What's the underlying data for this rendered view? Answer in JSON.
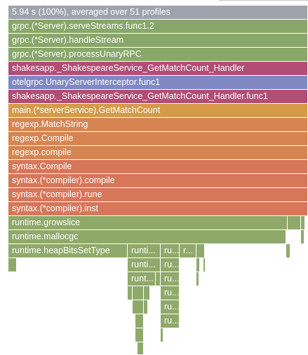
{
  "flamegraph": {
    "root": {
      "label": "5.94 s (100%), averaged over 51 profiles"
    },
    "stack": [
      {
        "label": "grpc.(*Server).serveStreams.func1.2"
      },
      {
        "label": "grpc.(*Server).handleStream"
      },
      {
        "label": "grpc.(*Server).processUnaryRPC"
      },
      {
        "label": "shakesapp._ShakespeareService_GetMatchCount_Handler"
      },
      {
        "label": "otelgrpc.UnaryServerInterceptor.func1"
      },
      {
        "label": "shakesapp._ShakespeareService_GetMatchCount_Handler.func1"
      },
      {
        "label": "main.(*serverService).GetMatchCount"
      },
      {
        "label": "regexp.MatchString"
      },
      {
        "label": "regexp.Compile"
      },
      {
        "label": "regexp.compile"
      },
      {
        "label": "syntax.Compile"
      },
      {
        "label": "syntax.(*compiler).compile"
      },
      {
        "label": "syntax.(*compiler).rune"
      },
      {
        "label": "syntax.(*compiler).inst"
      },
      {
        "label": "runtime.growslice"
      },
      {
        "label": "runtime.mallocgc"
      }
    ],
    "heap_row": [
      {
        "label": "runtime.heapBitsSetType"
      },
      {
        "label": "runti..."
      },
      {
        "label": "ru..."
      },
      {
        "label": "r..."
      }
    ],
    "deep_rows": [
      [
        {
          "label": "runti..."
        },
        {
          "label": "ru..."
        }
      ],
      [
        {
          "label": "runt..."
        },
        {
          "label": "ru..."
        }
      ],
      [
        {
          "label": "ru..."
        }
      ],
      [
        {
          "label": "ru..."
        }
      ],
      [
        {
          "label": "ru..."
        }
      ]
    ]
  }
}
